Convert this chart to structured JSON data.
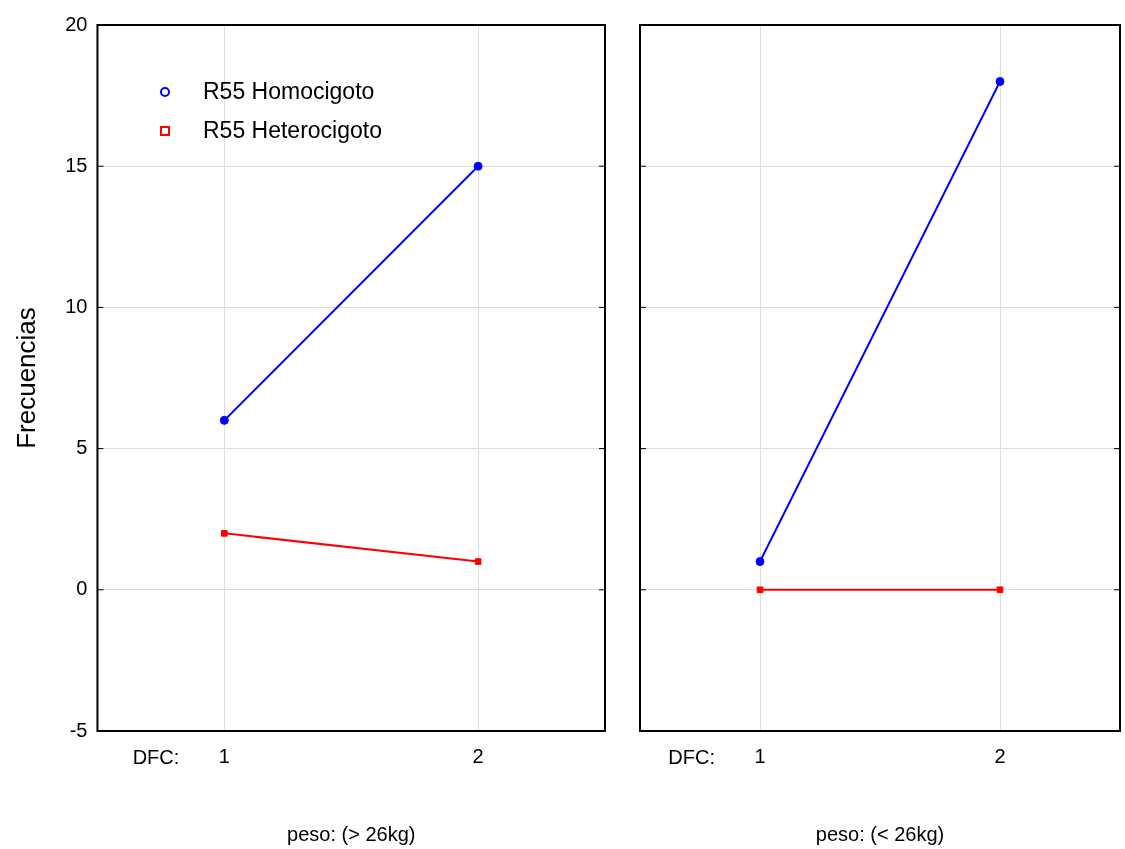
{
  "chart_data": [
    {
      "type": "line",
      "categories": [
        "1",
        "2"
      ],
      "xlabel": "peso: (> 26kg)",
      "ylabel": "Frecuencias",
      "annotations": [
        "DFC:"
      ],
      "ylim": [
        -5,
        20
      ],
      "yticks": [
        -5,
        0,
        5,
        10,
        15,
        20
      ],
      "grid": true,
      "legend": "top left",
      "series": [
        {
          "name": "R55 Homocigoto",
          "color": "#0000ff",
          "marker": "circle",
          "values": [
            6,
            15
          ]
        },
        {
          "name": "R55 Heterocigoto",
          "color": "#ff0000",
          "marker": "square",
          "values": [
            2,
            1
          ]
        }
      ]
    },
    {
      "type": "line",
      "categories": [
        "1",
        "2"
      ],
      "xlabel": "peso: (< 26kg)",
      "annotations": [
        "DFC:"
      ],
      "ylim": [
        -5,
        20
      ],
      "yticks": [
        -5,
        0,
        5,
        10,
        15,
        20
      ],
      "grid": true,
      "tick_labels": "x",
      "series": [
        {
          "color": "#0000ff",
          "marker": "circle",
          "values": [
            1,
            18
          ]
        },
        {
          "color": "#ff0000",
          "marker": "square",
          "values": [
            0,
            0
          ]
        }
      ]
    }
  ]
}
